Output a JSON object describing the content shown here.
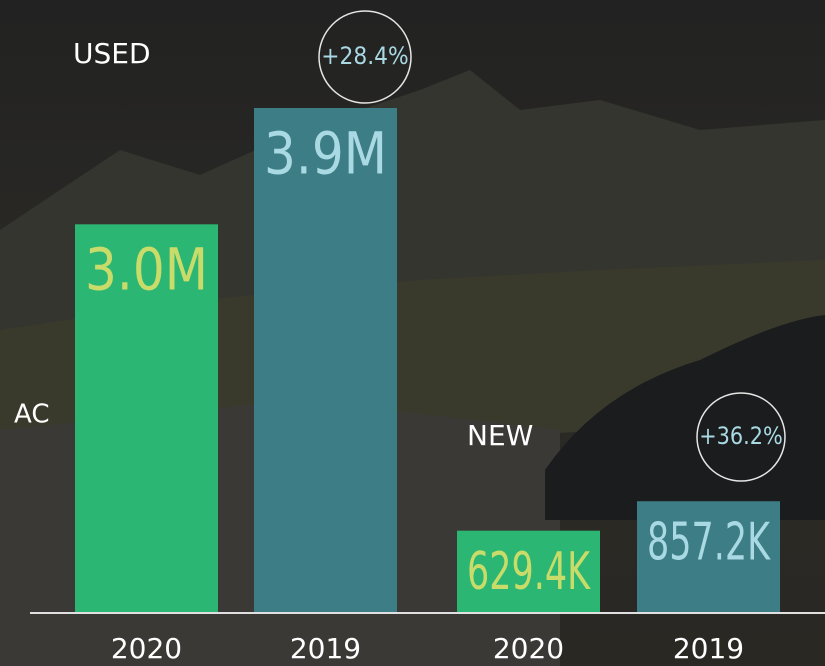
{
  "side_text": "AC",
  "chart_data": [
    {
      "type": "bar",
      "title": "USED",
      "categories": [
        "2020",
        "2019"
      ],
      "values": [
        3000000,
        3900000
      ],
      "value_labels": [
        "3.0M",
        "3.9M"
      ],
      "colors": [
        "#2bb673",
        "#3d7d86"
      ],
      "label_colors": [
        "#c9dc6a",
        "#a9d9e3"
      ],
      "annotation": "+28.4%"
    },
    {
      "type": "bar",
      "title": "NEW",
      "categories": [
        "2020",
        "2019"
      ],
      "values": [
        629400,
        857200
      ],
      "value_labels": [
        "629.4K",
        "857.2K"
      ],
      "colors": [
        "#2bb673",
        "#3d7d86"
      ],
      "label_colors": [
        "#c9dc6a",
        "#a9d9e3"
      ],
      "annotation": "+36.2%"
    }
  ]
}
